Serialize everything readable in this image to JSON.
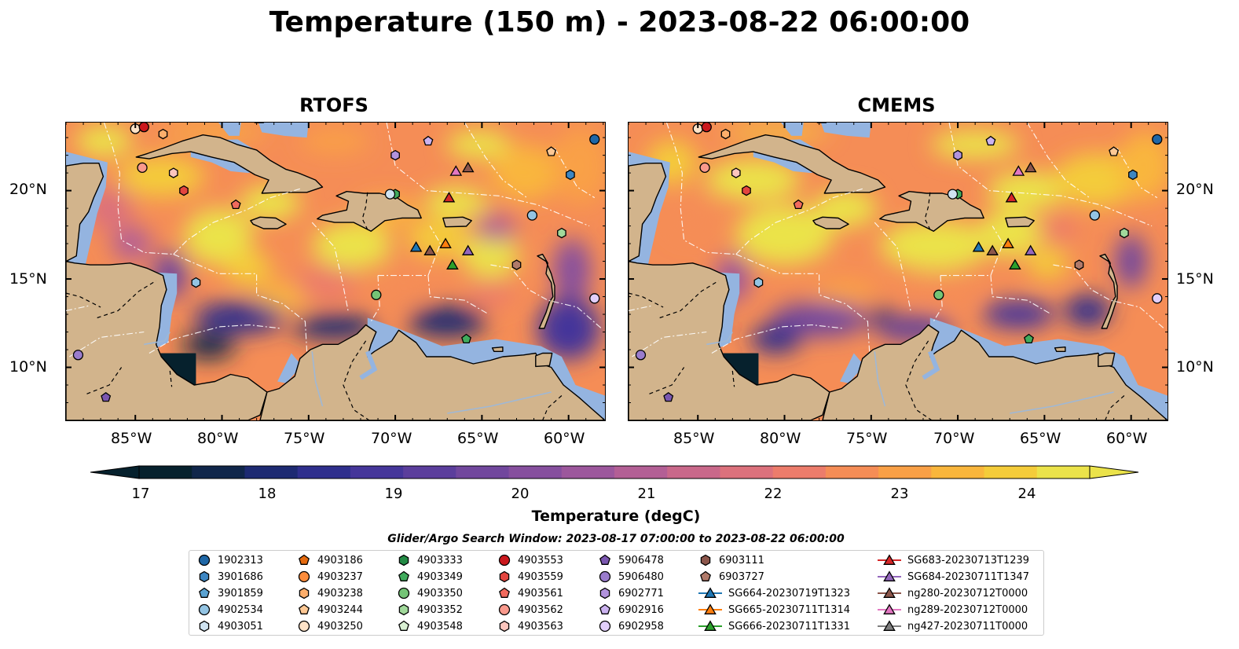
{
  "title": "Temperature (150 m) - 2023-08-22 06:00:00",
  "panels": [
    {
      "title": "RTOFS"
    },
    {
      "title": "CMEMS"
    }
  ],
  "lon_ticks": [
    "85°W",
    "80°W",
    "75°W",
    "70°W",
    "65°W",
    "60°W"
  ],
  "lat_ticks": [
    "20°N",
    "15°N",
    "10°N"
  ],
  "colorbar": {
    "label": "Temperature (degC)",
    "ticks": [
      "17",
      "18",
      "19",
      "20",
      "21",
      "22",
      "23",
      "24"
    ],
    "range": [
      16.75,
      24.5
    ],
    "step": 0.25,
    "extend": "both",
    "colormap": "thermal",
    "colors": [
      "#06212d",
      "#10264a",
      "#1d2a72",
      "#2f2f8d",
      "#45369a",
      "#5b3e9c",
      "#71479d",
      "#864f9e",
      "#9c579c",
      "#b35f95",
      "#c9688a",
      "#dc717c",
      "#ec7c6b",
      "#f58d56",
      "#f9a046",
      "#f9b63c",
      "#f4cc3a",
      "#ebe34a"
    ]
  },
  "legend": {
    "title": "Glider/Argo Search Window: 2023-08-17 07:00:00 to 2023-08-22 06:00:00",
    "columns": [
      [
        {
          "label": "1902313",
          "shape": "circle",
          "color": "#1f67a6"
        },
        {
          "label": "3901686",
          "shape": "hexagon",
          "color": "#3d86c2"
        },
        {
          "label": "3901859",
          "shape": "pentagon",
          "color": "#5aa2d1"
        },
        {
          "label": "4902534",
          "shape": "circle",
          "color": "#93c4e3"
        },
        {
          "label": "4903051",
          "shape": "hexagon",
          "color": "#cfe3f1"
        }
      ],
      [
        {
          "label": "4903186",
          "shape": "pentagon",
          "color": "#e56a0f"
        },
        {
          "label": "4903237",
          "shape": "circle",
          "color": "#fd8d3c"
        },
        {
          "label": "4903238",
          "shape": "hexagon",
          "color": "#fdae6b"
        },
        {
          "label": "4903244",
          "shape": "pentagon",
          "color": "#fdc894"
        },
        {
          "label": "4903250",
          "shape": "circle",
          "color": "#fee3c8"
        }
      ],
      [
        {
          "label": "4903333",
          "shape": "hexagon",
          "color": "#238b45"
        },
        {
          "label": "4903349",
          "shape": "pentagon",
          "color": "#41ab5d"
        },
        {
          "label": "4903350",
          "shape": "circle",
          "color": "#74c476"
        },
        {
          "label": "4903352",
          "shape": "hexagon",
          "color": "#a1d99b"
        },
        {
          "label": "4903548",
          "shape": "pentagon",
          "color": "#d9f0d3"
        }
      ],
      [
        {
          "label": "4903553",
          "shape": "circle",
          "color": "#cb181d"
        },
        {
          "label": "4903559",
          "shape": "hexagon",
          "color": "#e3453f"
        },
        {
          "label": "4903561",
          "shape": "pentagon",
          "color": "#f16a5d"
        },
        {
          "label": "4903562",
          "shape": "circle",
          "color": "#f9998c"
        },
        {
          "label": "4903563",
          "shape": "hexagon",
          "color": "#fcc5bd"
        }
      ],
      [
        {
          "label": "5906478",
          "shape": "pentagon",
          "color": "#7b57b0"
        },
        {
          "label": "5906480",
          "shape": "circle",
          "color": "#9a7ccc"
        },
        {
          "label": "6902771",
          "shape": "hexagon",
          "color": "#b293dd"
        },
        {
          "label": "6902916",
          "shape": "pentagon",
          "color": "#cbb2ef"
        },
        {
          "label": "6902958",
          "shape": "circle",
          "color": "#e2cffa"
        }
      ],
      [
        {
          "label": "6903111",
          "shape": "hexagon",
          "color": "#8c564b"
        },
        {
          "label": "6903727",
          "shape": "pentagon",
          "color": "#b07a6a"
        },
        {
          "label": "SG664-20230719T1323",
          "shape": "triangle-line",
          "color": "#1f77b4"
        },
        {
          "label": "SG665-20230711T1314",
          "shape": "triangle-line",
          "color": "#ff7f0e"
        },
        {
          "label": "SG666-20230711T1331",
          "shape": "triangle-line",
          "color": "#2ca02c"
        }
      ],
      [
        {
          "label": "SG683-20230713T1239",
          "shape": "triangle-line",
          "color": "#d62728"
        },
        {
          "label": "SG684-20230711T1347",
          "shape": "triangle-line",
          "color": "#9467bd"
        },
        {
          "label": "ng280-20230712T0000",
          "shape": "triangle-line",
          "color": "#8c564b"
        },
        {
          "label": "ng289-20230712T0000",
          "shape": "triangle-line",
          "color": "#e377c2"
        },
        {
          "label": "ng427-20230711T0000",
          "shape": "triangle-line",
          "color": "#7f7f7f"
        }
      ]
    ]
  },
  "map_colors": {
    "land": "#d2b48c",
    "shelf_water": "#94b4e0"
  }
}
